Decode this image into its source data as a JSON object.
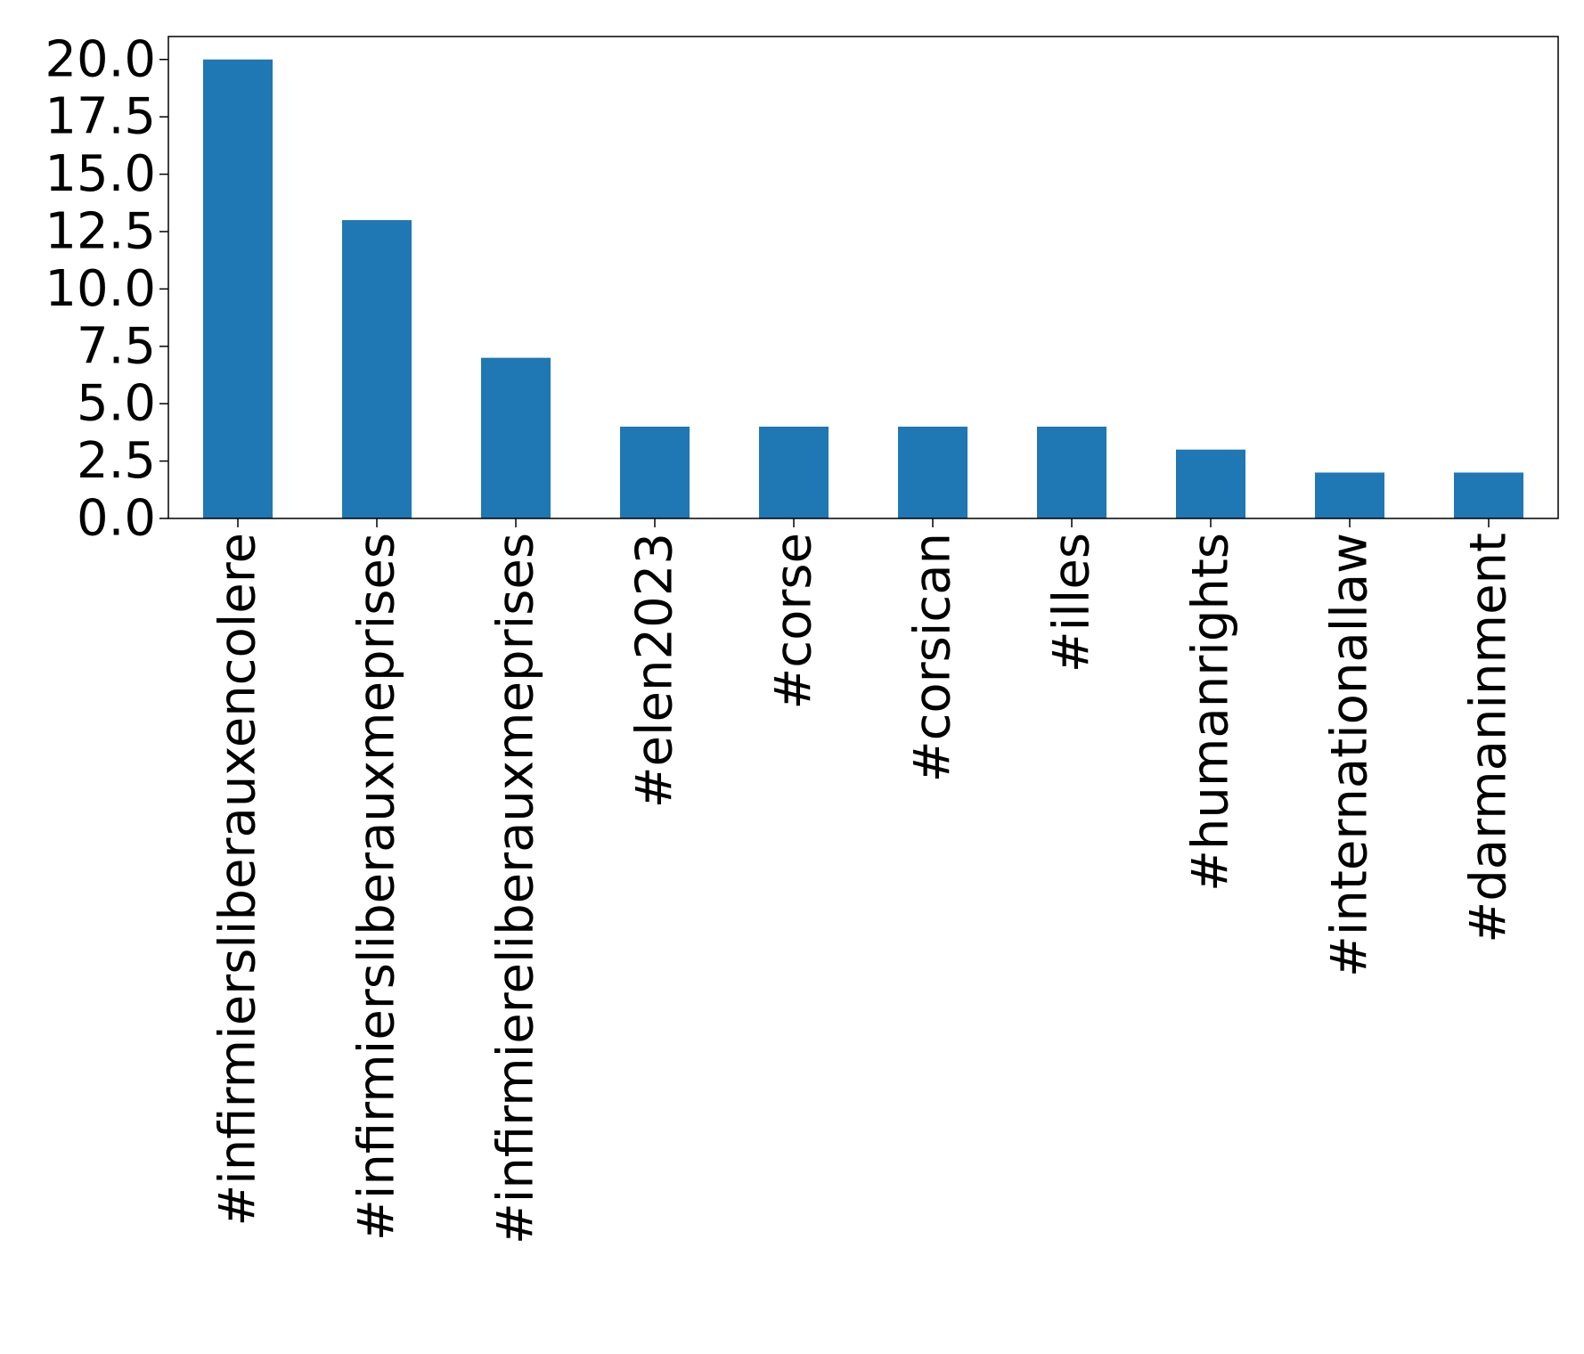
{
  "chart_data": {
    "type": "bar",
    "title": "",
    "xlabel": "",
    "ylabel": "",
    "categories": [
      "#infirmiersliberauxencolere",
      "#infirmiersliberauxmeprises",
      "#infirmiereliberauxmeprises",
      "#elen2023",
      "#corse",
      "#corsican",
      "#illes",
      "#humanrights",
      "#internationallaw",
      "#darmaninment"
    ],
    "values": [
      20,
      13,
      7,
      4,
      4,
      4,
      4,
      3,
      2,
      2
    ],
    "ylim": [
      0,
      21
    ],
    "yticks": [
      0.0,
      2.5,
      5.0,
      7.5,
      10.0,
      12.5,
      15.0,
      17.5,
      20.0
    ],
    "ytick_labels": [
      "0.0",
      "2.5",
      "5.0",
      "7.5",
      "10.0",
      "12.5",
      "15.0",
      "17.5",
      "20.0"
    ],
    "bar_color": "#1f77b4",
    "grid": false,
    "legend": "none"
  }
}
